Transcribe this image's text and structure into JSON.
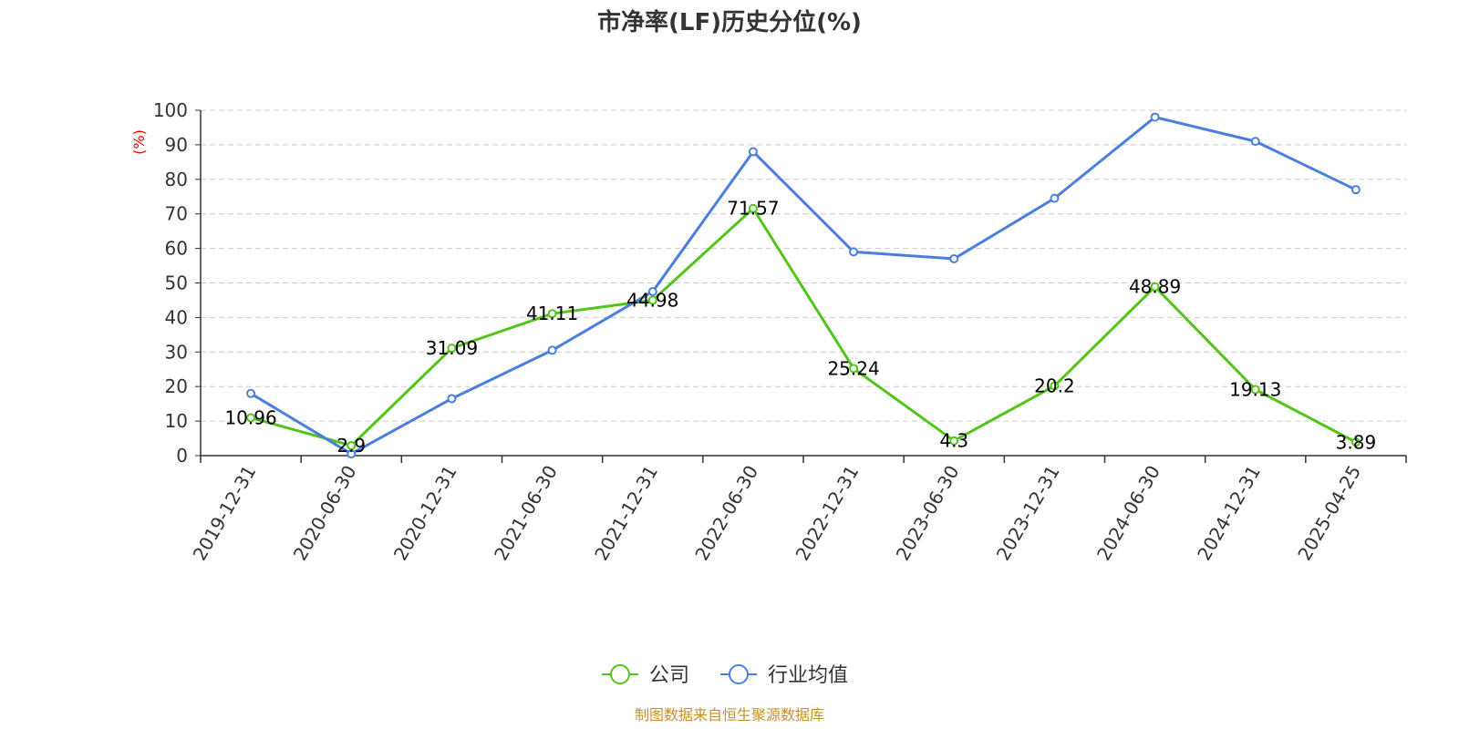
{
  "chart_data": {
    "type": "line",
    "title": "市净率(LF)历史分位(%)",
    "ylabel": "(%)",
    "xlabel": "",
    "ylim": [
      0,
      100
    ],
    "y_ticks": [
      0,
      10,
      20,
      30,
      40,
      50,
      60,
      70,
      80,
      90,
      100
    ],
    "grid": "horizontal dashed",
    "legend_position": "bottom-center",
    "categories": [
      "2019-12-31",
      "2020-06-30",
      "2020-12-31",
      "2021-06-30",
      "2021-12-31",
      "2022-06-30",
      "2022-12-31",
      "2023-06-30",
      "2023-12-31",
      "2024-06-30",
      "2024-12-31",
      "2025-04-25"
    ],
    "series": [
      {
        "name": "公司",
        "color": "#52c41a",
        "show_labels": true,
        "values": [
          10.96,
          2.9,
          31.09,
          41.11,
          44.98,
          71.57,
          25.24,
          4.3,
          20.2,
          48.89,
          19.13,
          3.89
        ],
        "labels": [
          "10.96",
          "2.9",
          "31.09",
          "41.11",
          "44.98",
          "71.57",
          "25.24",
          "4.3",
          "20.2",
          "48.89",
          "19.13",
          "3.89"
        ]
      },
      {
        "name": "行业均值",
        "color": "#4a7fdb",
        "show_labels": false,
        "values": [
          18,
          0.5,
          16.5,
          30.5,
          47.5,
          88,
          59,
          57,
          74.5,
          98,
          91,
          77
        ]
      }
    ],
    "source": "制图数据来自恒生聚源数据库"
  }
}
